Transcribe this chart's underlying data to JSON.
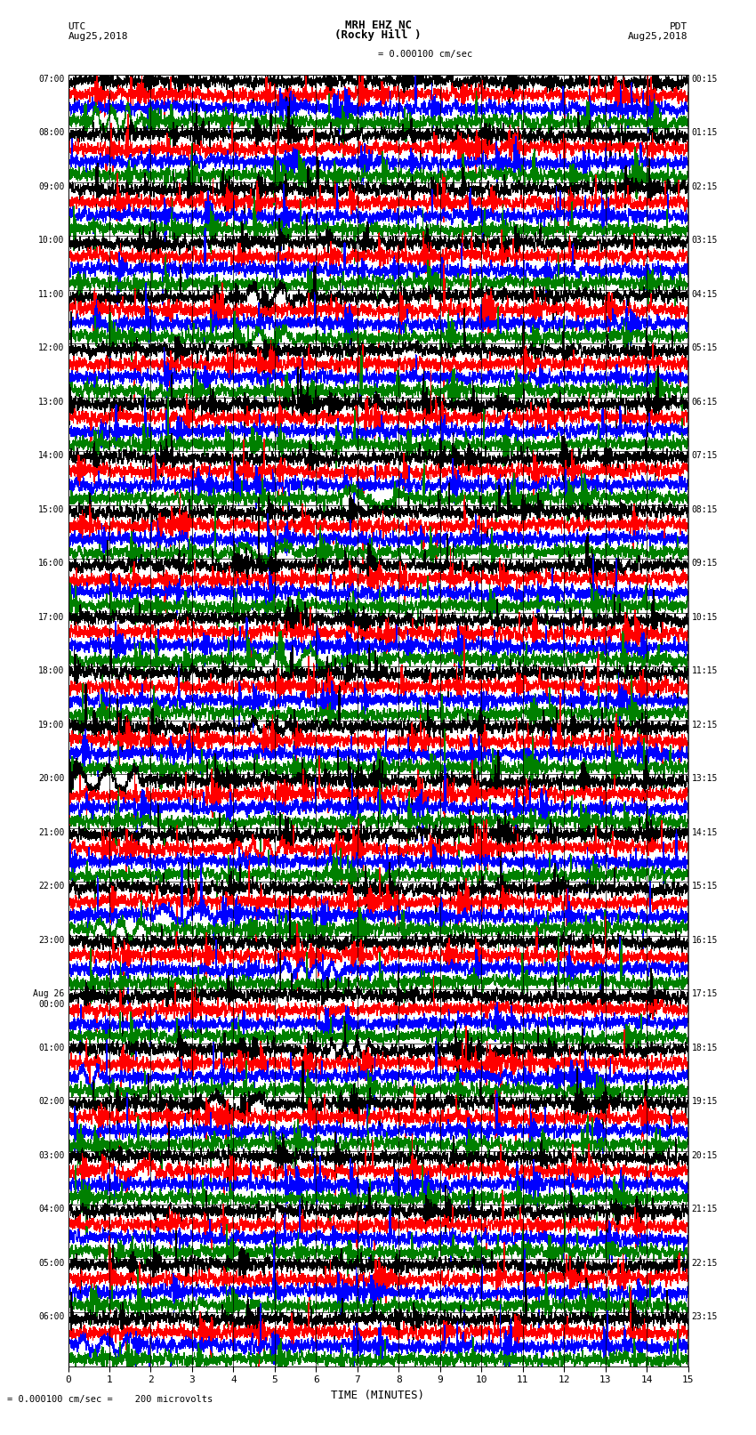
{
  "title_line1": "MRH EHZ NC",
  "title_line2": "(Rocky Hill )",
  "scale_label": "= 0.000100 cm/sec",
  "scale_label2": "= 0.000100 cm/sec =    200 microvolts",
  "left_header_line1": "UTC",
  "left_header_line2": "Aug25,2018",
  "right_header_line1": "PDT",
  "right_header_line2": "Aug25,2018",
  "xlabel": "TIME (MINUTES)",
  "left_time_labels": [
    "07:00",
    "08:00",
    "09:00",
    "10:00",
    "11:00",
    "12:00",
    "13:00",
    "14:00",
    "15:00",
    "16:00",
    "17:00",
    "18:00",
    "19:00",
    "20:00",
    "21:00",
    "22:00",
    "23:00",
    "Aug 26\n00:00",
    "01:00",
    "02:00",
    "03:00",
    "04:00",
    "05:00",
    "06:00"
  ],
  "right_time_labels": [
    "00:15",
    "01:15",
    "02:15",
    "03:15",
    "04:15",
    "05:15",
    "06:15",
    "07:15",
    "08:15",
    "09:15",
    "10:15",
    "11:15",
    "12:15",
    "13:15",
    "14:15",
    "15:15",
    "16:15",
    "17:15",
    "18:15",
    "19:15",
    "20:15",
    "21:15",
    "22:15",
    "23:15"
  ],
  "n_rows": 24,
  "colors": [
    "black",
    "red",
    "blue",
    "green"
  ],
  "background": "white",
  "line_width": 0.4,
  "xlim": [
    0,
    15
  ],
  "xticks": [
    0,
    1,
    2,
    3,
    4,
    5,
    6,
    7,
    8,
    9,
    10,
    11,
    12,
    13,
    14,
    15
  ]
}
